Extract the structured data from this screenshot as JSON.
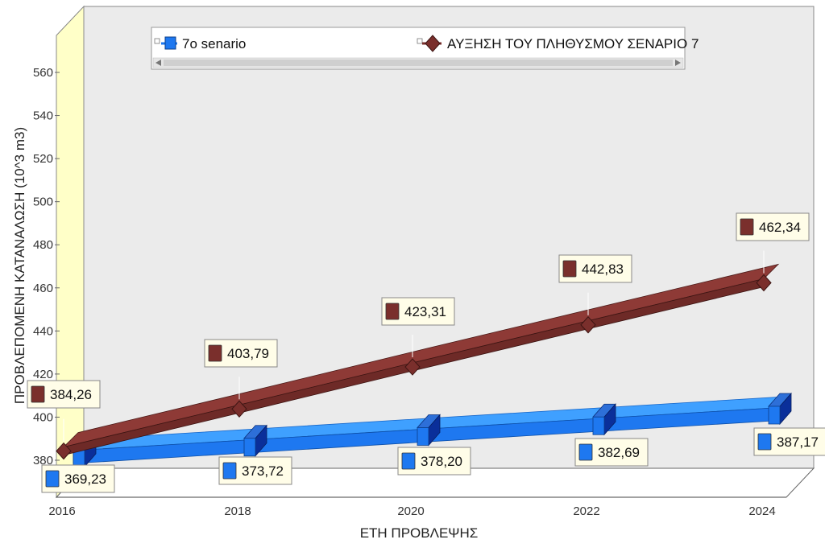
{
  "chart_data": {
    "type": "line",
    "title": "",
    "xlabel": "ΕΤΗ ΠΡΟΒΛΕΨΗΣ",
    "ylabel": "ΠΡΟΒΛΕΠΟΜΕΝΗ ΚΑΤΑΝΑΛΩΣΗ (10^3 m3)",
    "x": [
      "2016",
      "2018",
      "2020",
      "2022",
      "2024"
    ],
    "y_ticks": [
      "380",
      "400",
      "420",
      "440",
      "460",
      "480",
      "500",
      "520",
      "540",
      "560"
    ],
    "ylim": [
      380,
      560
    ],
    "grid": false,
    "three_d": true,
    "legend_position": "top",
    "series": [
      {
        "name": "7o senario",
        "marker": "square",
        "color": "#1e78f0",
        "values": [
          369.23,
          373.72,
          378.2,
          382.69,
          387.17
        ],
        "labels": [
          "369,23",
          "373,72",
          "378,20",
          "382,69",
          "387,17"
        ]
      },
      {
        "name": "ΑΥΞΗΣΗ ΤΟΥ ΠΛΗΘΥΣΜΟΥ ΣΕΝΑΡΙΟ 7",
        "marker": "diamond",
        "color": "#7a2f2c",
        "values": [
          384.26,
          403.79,
          423.31,
          442.83,
          462.34
        ],
        "labels": [
          "384,26",
          "403,79",
          "423,31",
          "442,83",
          "462,34"
        ]
      }
    ]
  }
}
